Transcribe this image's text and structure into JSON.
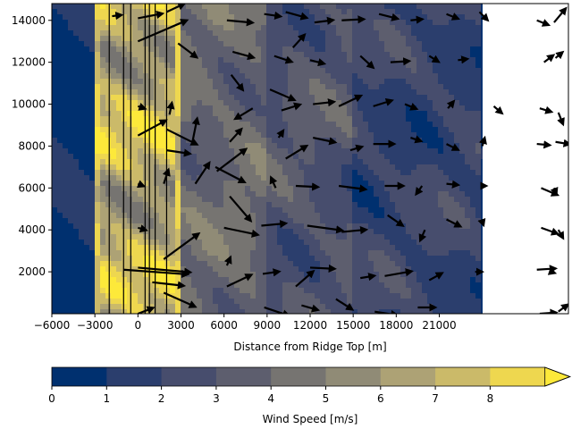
{
  "chart_data": {
    "type": "heatmap",
    "title": "",
    "xlabel": "Distance from Ridge Top [m]",
    "ylabel": "",
    "xlim": [
      -6000,
      30000
    ],
    "ylim": [
      0,
      14800
    ],
    "x_ticks": [
      -6000,
      -3000,
      0,
      3000,
      6000,
      9000,
      12000,
      15000,
      18000,
      21000
    ],
    "x_tick_labels": [
      "−6000",
      "−3000",
      "0",
      "3000",
      "6000",
      "9000",
      "12000",
      "15000",
      "18000",
      "21000"
    ],
    "y_ticks": [
      2000,
      4000,
      6000,
      8000,
      10000,
      12000,
      14000
    ],
    "y_tick_labels": [
      "2000",
      "4000",
      "6000",
      "8000",
      "10000",
      "12000",
      "14000"
    ],
    "filled_contour_extent_x": [
      -6000,
      24000
    ],
    "vertical_lines_x": [
      -2000,
      -1000,
      -500,
      500,
      800,
      1200,
      2000
    ],
    "colorbar": {
      "label": "Wind Speed [m/s]",
      "levels": [
        0,
        1,
        2,
        3,
        4,
        5,
        6,
        7,
        8
      ],
      "tick_labels": [
        "0",
        "1",
        "2",
        "3",
        "4",
        "5",
        "6",
        "7",
        "8"
      ],
      "extend": "max",
      "colors": [
        "#00306f",
        "#2b3e6d",
        "#474d6d",
        "#5d5e6e",
        "#767471",
        "#908b76",
        "#ada275",
        "#cbba69",
        "#eed74f"
      ],
      "over_color": "#fde93a"
    },
    "colormap": "cividis",
    "field_description": [
      {
        "x_range": [
          -6000,
          -3000
        ],
        "dominant_level": 0
      },
      {
        "x_range": [
          -3000,
          3000
        ],
        "dominant_level": 8
      },
      {
        "x_range": [
          3000,
          9000
        ],
        "dominant_level": 4
      },
      {
        "x_range": [
          9000,
          15000
        ],
        "dominant_level": 3
      },
      {
        "x_range": [
          15000,
          24000
        ],
        "dominant_level": 2
      }
    ],
    "quiver": [
      {
        "x": -1800,
        "y": 14200,
        "u": 0.8,
        "v": 0.1
      },
      {
        "x": 0,
        "y": 14100,
        "u": 2.1,
        "v": 0.4
      },
      {
        "x": 2000,
        "y": 14400,
        "u": 1.5,
        "v": 0.7
      },
      {
        "x": 6200,
        "y": 14000,
        "u": 2.2,
        "v": -0.2
      },
      {
        "x": 8800,
        "y": 14300,
        "u": 1.4,
        "v": -0.2
      },
      {
        "x": 10300,
        "y": 14400,
        "u": 1.8,
        "v": -0.5
      },
      {
        "x": 12300,
        "y": 13900,
        "u": 1.6,
        "v": 0.2
      },
      {
        "x": 14200,
        "y": 14000,
        "u": 1.9,
        "v": 0.1
      },
      {
        "x": 16800,
        "y": 14300,
        "u": 1.6,
        "v": -0.4
      },
      {
        "x": 19000,
        "y": 14000,
        "u": 1.0,
        "v": 0.1
      },
      {
        "x": 21500,
        "y": 14300,
        "u": 1.0,
        "v": -0.4
      },
      {
        "x": 23800,
        "y": 14400,
        "u": 0.7,
        "v": -0.7
      },
      {
        "x": 27800,
        "y": 14000,
        "u": 1.0,
        "v": -0.4
      },
      {
        "x": 29000,
        "y": 13900,
        "u": 1.0,
        "v": 1.2
      },
      {
        "x": 0,
        "y": 13000,
        "u": 4.2,
        "v": 1.8
      },
      {
        "x": 2800,
        "y": 12900,
        "u": 1.6,
        "v": -1.2
      },
      {
        "x": 6600,
        "y": 12500,
        "u": 1.8,
        "v": -0.5
      },
      {
        "x": 9500,
        "y": 12300,
        "u": 1.5,
        "v": -0.5
      },
      {
        "x": 12000,
        "y": 12100,
        "u": 1.2,
        "v": -0.3
      },
      {
        "x": 10800,
        "y": 12700,
        "u": 1.0,
        "v": 1.1
      },
      {
        "x": 15500,
        "y": 12300,
        "u": 1.1,
        "v": -1.0
      },
      {
        "x": 17600,
        "y": 12000,
        "u": 1.6,
        "v": 0.1
      },
      {
        "x": 20300,
        "y": 12300,
        "u": 0.8,
        "v": -0.5
      },
      {
        "x": 22300,
        "y": 12100,
        "u": 0.8,
        "v": 0.1
      },
      {
        "x": 28300,
        "y": 12000,
        "u": 0.8,
        "v": 0.6
      },
      {
        "x": 29100,
        "y": 12200,
        "u": 0.6,
        "v": 0.5
      },
      {
        "x": 6500,
        "y": 11400,
        "u": 1.0,
        "v": -1.3
      },
      {
        "x": 9200,
        "y": 10700,
        "u": 2.1,
        "v": -0.9
      },
      {
        "x": 8000,
        "y": 9800,
        "u": -1.5,
        "v": -0.9
      },
      {
        "x": 10000,
        "y": 9700,
        "u": 1.6,
        "v": 0.5
      },
      {
        "x": 12200,
        "y": 10000,
        "u": 1.8,
        "v": 0.2
      },
      {
        "x": 14000,
        "y": 9900,
        "u": 1.9,
        "v": 0.9
      },
      {
        "x": 16400,
        "y": 9900,
        "u": 1.6,
        "v": 0.5
      },
      {
        "x": 18600,
        "y": 10000,
        "u": 1.0,
        "v": -0.4
      },
      {
        "x": 21600,
        "y": 9800,
        "u": 0.5,
        "v": 0.6
      },
      {
        "x": 0,
        "y": 9900,
        "u": 0.6,
        "v": -0.2
      },
      {
        "x": 2200,
        "y": 9500,
        "u": 0.2,
        "v": 1.0
      },
      {
        "x": 3800,
        "y": 8200,
        "u": 0.4,
        "v": 2.0
      },
      {
        "x": 24800,
        "y": 9900,
        "u": 0.7,
        "v": -0.6
      },
      {
        "x": 28000,
        "y": 9800,
        "u": 1.0,
        "v": -0.3
      },
      {
        "x": 29300,
        "y": 9600,
        "u": 0.4,
        "v": -1.0
      },
      {
        "x": 0,
        "y": 8500,
        "u": 2.4,
        "v": 1.3
      },
      {
        "x": 2000,
        "y": 8800,
        "u": 2.6,
        "v": -1.3
      },
      {
        "x": 2000,
        "y": 7800,
        "u": 2.0,
        "v": -0.3
      },
      {
        "x": 6400,
        "y": 8200,
        "u": 1.0,
        "v": 1.1
      },
      {
        "x": 9800,
        "y": 8400,
        "u": 0.4,
        "v": 0.6
      },
      {
        "x": 10300,
        "y": 7400,
        "u": 1.8,
        "v": 1.1
      },
      {
        "x": 12200,
        "y": 8400,
        "u": 1.9,
        "v": -0.4
      },
      {
        "x": 14800,
        "y": 7800,
        "u": 1.0,
        "v": 0.3
      },
      {
        "x": 16400,
        "y": 8100,
        "u": 1.8,
        "v": 0.0
      },
      {
        "x": 19000,
        "y": 8400,
        "u": 0.9,
        "v": -0.3
      },
      {
        "x": 21500,
        "y": 8100,
        "u": 1.0,
        "v": -0.5
      },
      {
        "x": 24000,
        "y": 8000,
        "u": 0.2,
        "v": 0.7
      },
      {
        "x": 27800,
        "y": 8100,
        "u": 1.1,
        "v": -0.1
      },
      {
        "x": 29100,
        "y": 8200,
        "u": 1.2,
        "v": -0.2
      },
      {
        "x": 4000,
        "y": 6200,
        "u": 1.2,
        "v": 1.8
      },
      {
        "x": 5500,
        "y": 6800,
        "u": 2.5,
        "v": 1.9
      },
      {
        "x": 5400,
        "y": 7000,
        "u": 2.5,
        "v": -1.3
      },
      {
        "x": 1800,
        "y": 6200,
        "u": 0.4,
        "v": 1.2
      },
      {
        "x": 0,
        "y": 6200,
        "u": 0.5,
        "v": -0.2
      },
      {
        "x": 6400,
        "y": 5600,
        "u": 1.8,
        "v": -2.1
      },
      {
        "x": 9600,
        "y": 6000,
        "u": -0.4,
        "v": 0.9
      },
      {
        "x": 11000,
        "y": 6100,
        "u": 1.9,
        "v": -0.1
      },
      {
        "x": 14000,
        "y": 6100,
        "u": 2.3,
        "v": -0.3
      },
      {
        "x": 17200,
        "y": 6100,
        "u": 1.6,
        "v": 0.0
      },
      {
        "x": 19800,
        "y": 6100,
        "u": -0.5,
        "v": -0.7
      },
      {
        "x": 21500,
        "y": 6200,
        "u": 1.0,
        "v": -0.1
      },
      {
        "x": 24100,
        "y": 6100,
        "u": 0.2,
        "v": 0.0
      },
      {
        "x": 28100,
        "y": 6000,
        "u": 1.4,
        "v": -0.6
      },
      {
        "x": 29000,
        "y": 6000,
        "u": 0.2,
        "v": -0.5
      },
      {
        "x": 1800,
        "y": 2600,
        "u": 3.0,
        "v": 2.2
      },
      {
        "x": 0,
        "y": 4100,
        "u": 0.7,
        "v": -0.2
      },
      {
        "x": 6000,
        "y": 4100,
        "u": 2.9,
        "v": -0.6
      },
      {
        "x": 8600,
        "y": 4200,
        "u": 2.1,
        "v": 0.2
      },
      {
        "x": 11800,
        "y": 4200,
        "u": 3.0,
        "v": -0.4
      },
      {
        "x": 14200,
        "y": 3900,
        "u": 2.1,
        "v": 0.2
      },
      {
        "x": 17400,
        "y": 4700,
        "u": 1.3,
        "v": -0.9
      },
      {
        "x": 20000,
        "y": 4000,
        "u": -0.4,
        "v": -0.9
      },
      {
        "x": 21500,
        "y": 4500,
        "u": 1.2,
        "v": -0.6
      },
      {
        "x": 24000,
        "y": 4400,
        "u": 0.1,
        "v": -0.3
      },
      {
        "x": 28100,
        "y": 4100,
        "u": 1.4,
        "v": -0.5
      },
      {
        "x": 29300,
        "y": 4000,
        "u": 0.4,
        "v": -0.7
      },
      {
        "x": -1000,
        "y": 2100,
        "u": 5.5,
        "v": -0.4
      },
      {
        "x": 0,
        "y": 2200,
        "u": 4.5,
        "v": -0.4
      },
      {
        "x": 1000,
        "y": 1500,
        "u": 2.7,
        "v": -0.3
      },
      {
        "x": 6200,
        "y": 2300,
        "u": 0.3,
        "v": 0.7
      },
      {
        "x": 6200,
        "y": 1300,
        "u": 2.1,
        "v": 1.0
      },
      {
        "x": 8700,
        "y": 1900,
        "u": 1.4,
        "v": 0.2
      },
      {
        "x": 11000,
        "y": 1300,
        "u": 1.5,
        "v": 1.3
      },
      {
        "x": 12000,
        "y": 2200,
        "u": 2.1,
        "v": -0.1
      },
      {
        "x": 15500,
        "y": 1700,
        "u": 1.2,
        "v": 0.2
      },
      {
        "x": 17200,
        "y": 1800,
        "u": 2.3,
        "v": 0.4
      },
      {
        "x": 20300,
        "y": 1600,
        "u": 1.1,
        "v": 0.6
      },
      {
        "x": 23500,
        "y": 2000,
        "u": 0.6,
        "v": 0.0
      },
      {
        "x": 27800,
        "y": 2100,
        "u": 1.6,
        "v": 0.1
      },
      {
        "x": 28800,
        "y": 2000,
        "u": 0.3,
        "v": -0.1
      },
      {
        "x": 1800,
        "y": 1000,
        "u": 2.7,
        "v": -1.2
      },
      {
        "x": 0,
        "y": 0,
        "u": 1.3,
        "v": 0.5
      },
      {
        "x": 8800,
        "y": 300,
        "u": 2.1,
        "v": -0.7
      },
      {
        "x": 11400,
        "y": 400,
        "u": 1.4,
        "v": -0.4
      },
      {
        "x": 13800,
        "y": 700,
        "u": 1.4,
        "v": -0.9
      },
      {
        "x": 16500,
        "y": 100,
        "u": 1.9,
        "v": -0.3
      },
      {
        "x": 19500,
        "y": 300,
        "u": 1.5,
        "v": 0.0
      },
      {
        "x": 28000,
        "y": 0,
        "u": 1.4,
        "v": 0.1
      },
      {
        "x": 29300,
        "y": 100,
        "u": 0.8,
        "v": 0.6
      }
    ]
  }
}
